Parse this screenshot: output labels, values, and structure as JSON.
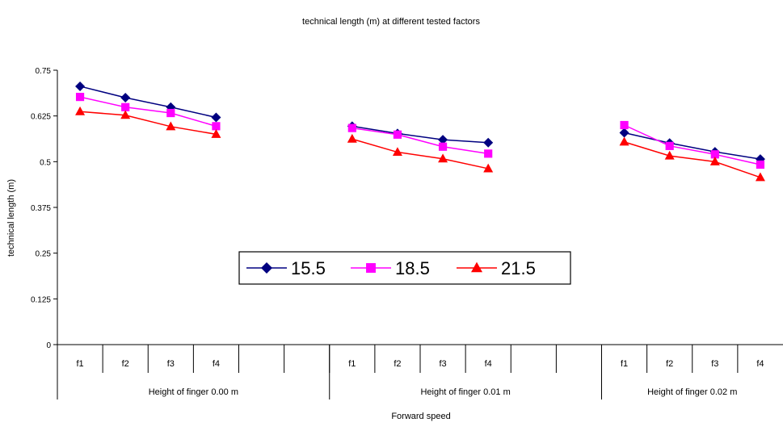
{
  "chart_data": {
    "type": "line",
    "title": "technical length (m) at different tested factors",
    "xlabel": "Forward speed",
    "ylabel": "technical length (m)",
    "ylim": [
      0,
      0.75
    ],
    "yticks": [
      0,
      0.125,
      0.25,
      0.375,
      0.5,
      0.625,
      0.75
    ],
    "ytick_labels": [
      "0",
      "0.125",
      "0.25",
      "0.375",
      "0.5",
      "0.625",
      "0.75"
    ],
    "grid": false,
    "legend_position": "center",
    "categories": [
      "f1",
      "f2",
      "f3",
      "f4",
      "",
      "",
      "f1",
      "f2",
      "f3",
      "f4",
      "",
      "",
      "f1",
      "f2",
      "f3",
      "f4"
    ],
    "groups": [
      {
        "label": "Height  of finger 0.00 m",
        "start": 0,
        "span": 6
      },
      {
        "label": "Height  of finger 0.01 m",
        "start": 6,
        "span": 6
      },
      {
        "label": "Height  of finger 0.02 m",
        "start": 12,
        "span": 4
      }
    ],
    "series": [
      {
        "name": "15.5",
        "color": "#000080",
        "marker": "diamond",
        "values": [
          0.706,
          0.675,
          0.649,
          0.621,
          null,
          null,
          0.597,
          0.577,
          0.56,
          0.552,
          null,
          null,
          0.579,
          0.551,
          0.527,
          0.507
        ]
      },
      {
        "name": "18.5",
        "color": "#FF00FF",
        "marker": "square",
        "values": [
          0.677,
          0.649,
          0.633,
          0.597,
          null,
          null,
          0.592,
          0.574,
          0.541,
          0.522,
          null,
          null,
          0.6,
          0.543,
          0.52,
          0.492
        ]
      },
      {
        "name": "21.5",
        "color": "#FF0000",
        "marker": "triangle",
        "values": [
          0.637,
          0.627,
          0.596,
          0.575,
          null,
          null,
          0.562,
          0.526,
          0.508,
          0.481,
          null,
          null,
          0.554,
          0.516,
          0.5,
          0.457
        ]
      }
    ]
  }
}
